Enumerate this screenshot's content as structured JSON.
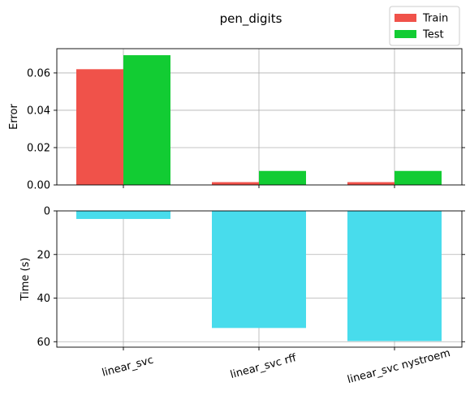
{
  "chart_data": [
    {
      "type": "bar",
      "title": "pen_digits",
      "categories": [
        "linear_svc",
        "linear_svc rff",
        "linear_svc nystroem"
      ],
      "series": [
        {
          "name": "Train",
          "values": [
            0.062,
            0.0015,
            0.0015
          ],
          "color": "#f0524a"
        },
        {
          "name": "Test",
          "values": [
            0.0695,
            0.0075,
            0.0075
          ],
          "color": "#12cc33"
        }
      ],
      "ylabel": "Error",
      "ylim": [
        0,
        0.073
      ],
      "yticks": [
        0.0,
        0.02,
        0.04,
        0.06
      ],
      "ytick_labels": [
        "0.00",
        "0.02",
        "0.04",
        "0.06"
      ],
      "grid": true,
      "legend": "top-right"
    },
    {
      "type": "bar",
      "categories": [
        "linear_svc",
        "linear_svc rff",
        "linear_svc nystroem"
      ],
      "series": [
        {
          "values": [
            3.7,
            53.7,
            59.7
          ],
          "color": "#48dcec"
        }
      ],
      "ylabel": "Time (s)",
      "ylim": [
        0,
        62.5
      ],
      "y_inverted": true,
      "yticks": [
        0,
        20,
        40,
        60
      ],
      "ytick_labels": [
        "0",
        "20",
        "40",
        "60"
      ],
      "grid": true
    }
  ]
}
